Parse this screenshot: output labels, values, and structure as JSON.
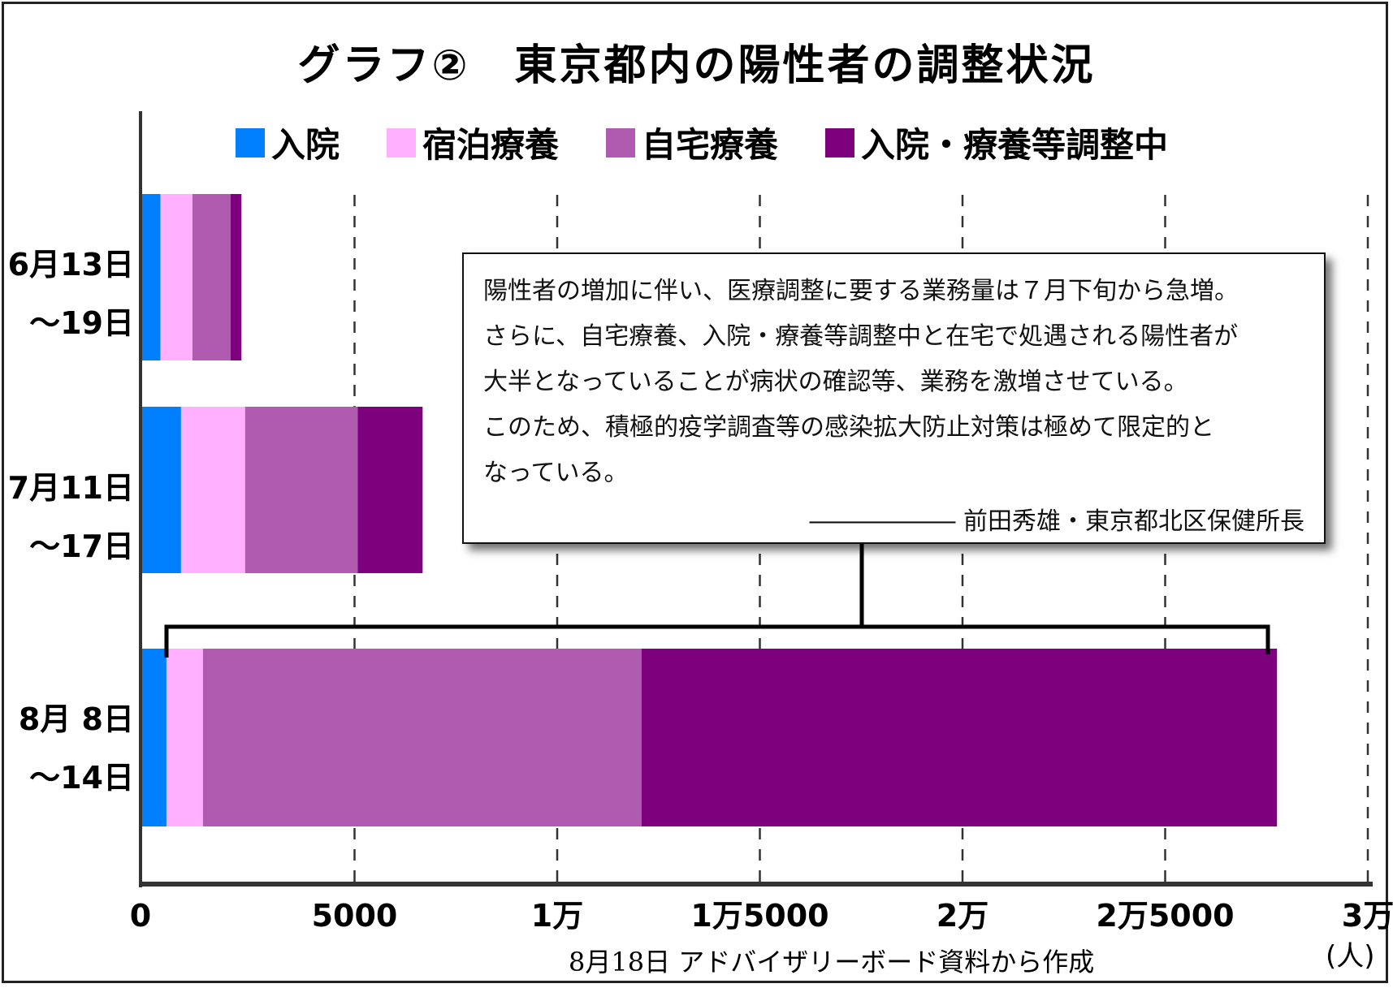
{
  "chart_data": {
    "type": "bar",
    "orientation": "horizontal",
    "stacked": true,
    "title": "グラフ②　東京都内の陽性者の調整状況",
    "categories": [
      {
        "line1": "6月13日",
        "line2": "〜19日"
      },
      {
        "line1": "7月11日",
        "line2": "〜17日"
      },
      {
        "line1": "8月 8日",
        "line2": "〜14日"
      }
    ],
    "series": [
      {
        "name": "入院",
        "color": "#0080ff",
        "values": [
          450,
          960,
          600
        ]
      },
      {
        "name": "宿泊療養",
        "color": "#ffb0ff",
        "values": [
          790,
          1580,
          900
        ]
      },
      {
        "name": "自宅療養",
        "color": "#b05bb0",
        "values": [
          940,
          2780,
          10820
        ]
      },
      {
        "name": "入院・療養等調整中",
        "color": "#7d007d",
        "values": [
          270,
          1600,
          15680
        ]
      }
    ],
    "xlim": [
      0,
      30000
    ],
    "xticks": [
      {
        "value": 0,
        "label": "0"
      },
      {
        "value": 5000,
        "label": "5000"
      },
      {
        "value": 10000,
        "label": "1万"
      },
      {
        "value": 15000,
        "label": "1万5000"
      },
      {
        "value": 20000,
        "label": "2万"
      },
      {
        "value": 25000,
        "label": "2万5000"
      },
      {
        "value": 30000,
        "label": "3万"
      }
    ],
    "xunit": "(人)",
    "grid": "vertical-dashed",
    "legend_position": "top",
    "source": "8月18日 アドバイザリーボード資料から作成"
  },
  "callout": {
    "lines": [
      "陽性者の増加に伴い、医療調整に要する業務量は７月下旬から急増。",
      "さらに、自宅療養、入院・療養等調整中と在宅で処遇される陽性者が",
      "大半となっていることが病状の確認等、業務を激増させている。",
      "このため、積極的疫学調査等の感染拡大防止対策は極めて限定的と",
      "なっている。"
    ],
    "attribution": "―――――― 前田秀雄・東京都北区保健所長"
  }
}
